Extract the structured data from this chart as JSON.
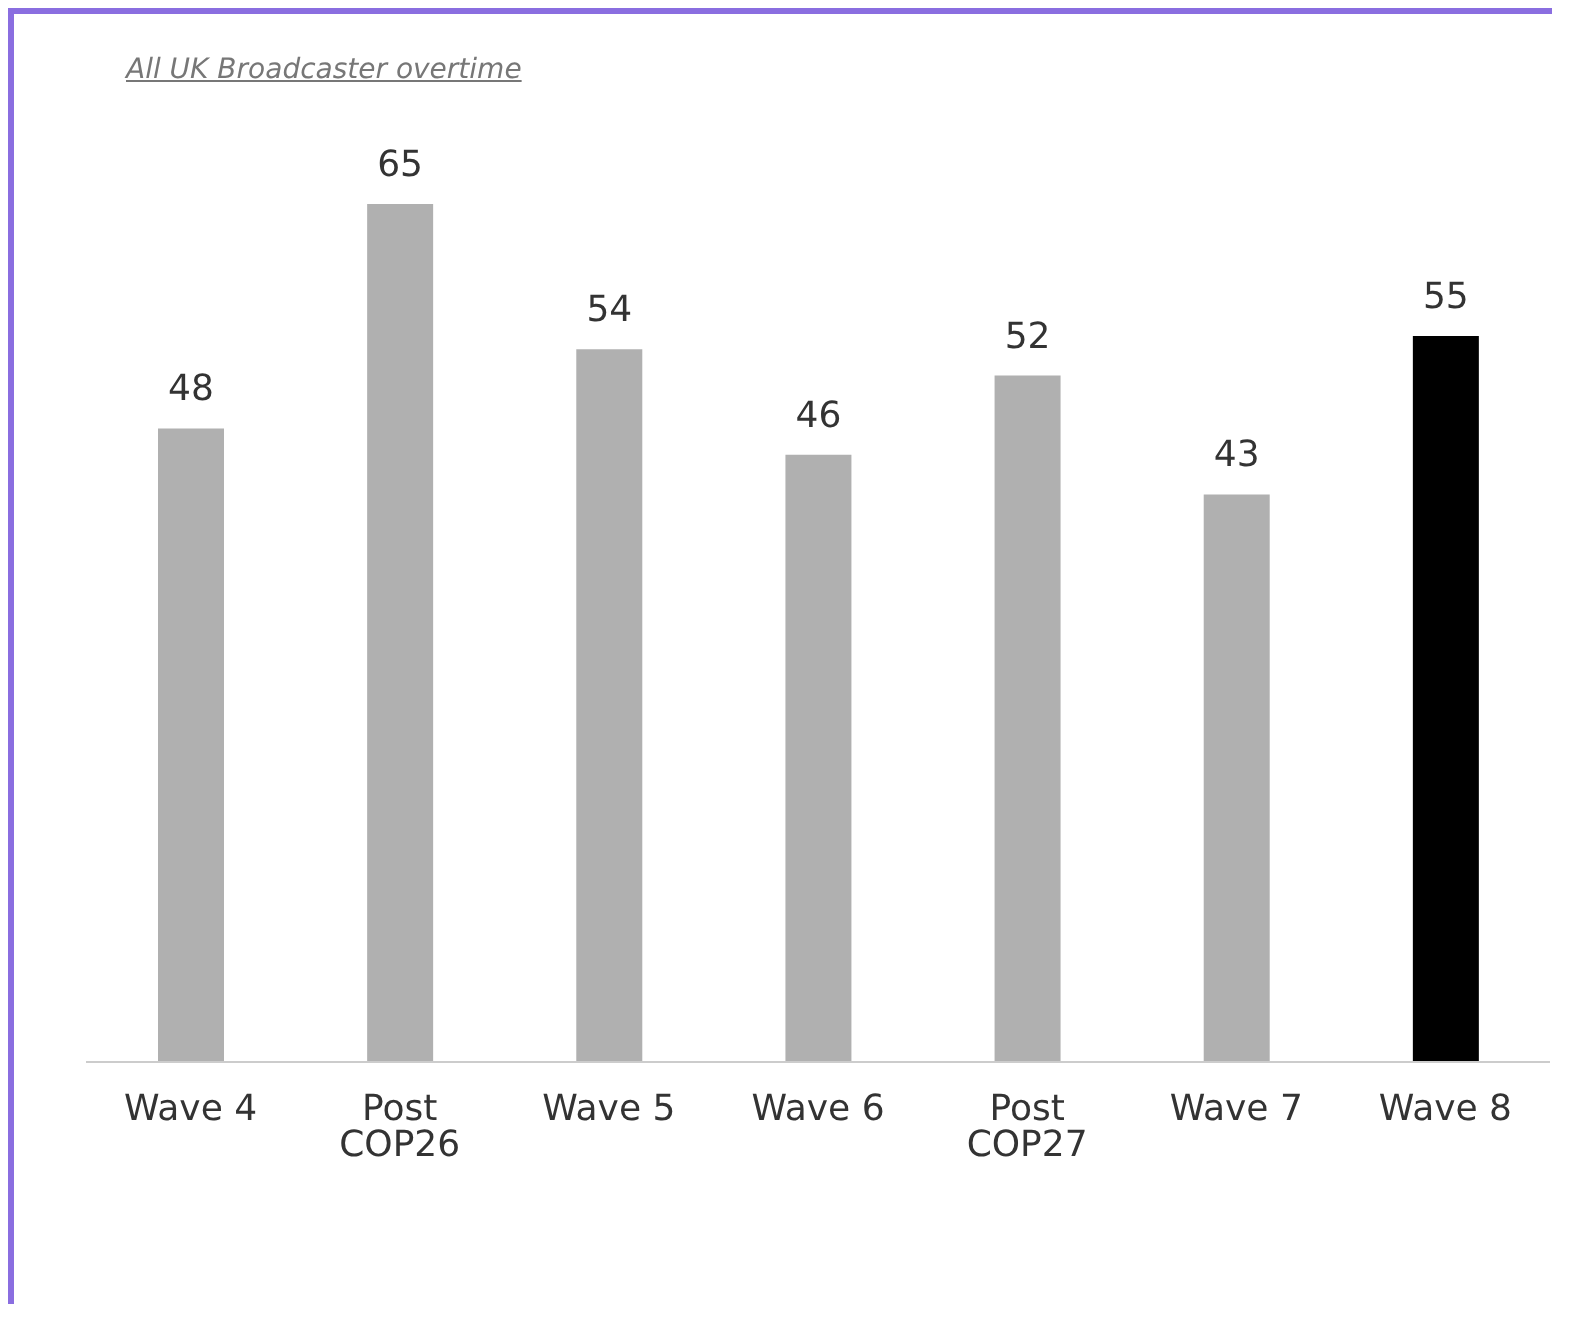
{
  "chart_data": {
    "type": "bar",
    "title": "All UK Broadcaster overtime",
    "categories": [
      "Wave 4",
      "Post COP26",
      "Wave 5",
      "Wave 6",
      "Post COP27",
      "Wave 7",
      "Wave 8"
    ],
    "values": [
      48,
      65,
      54,
      46,
      52,
      43,
      55
    ],
    "colors": [
      "#b0b0b0",
      "#b0b0b0",
      "#b0b0b0",
      "#b0b0b0",
      "#b0b0b0",
      "#b0b0b0",
      "#000000"
    ],
    "data_labels": true,
    "grid": false,
    "legend": false
  }
}
